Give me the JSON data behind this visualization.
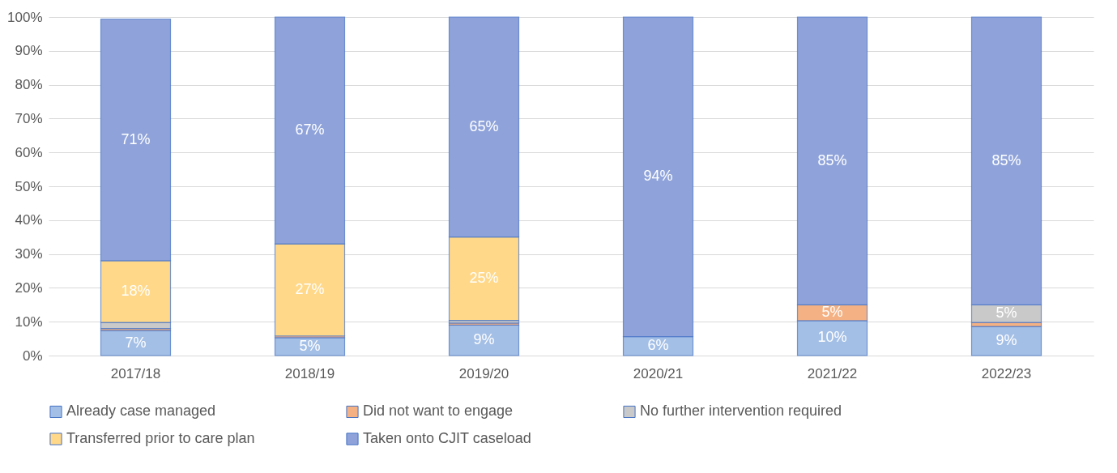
{
  "chart_data": {
    "type": "bar",
    "stacked": true,
    "categories": [
      "2017/18",
      "2018/19",
      "2019/20",
      "2020/21",
      "2021/22",
      "2022/23"
    ],
    "series": [
      {
        "name": "Already case managed",
        "color": "#a4bfe6",
        "values": [
          7.4,
          5.3,
          9.0,
          5.6,
          10.3,
          8.6
        ],
        "value_labels": [
          "7%",
          "5%",
          "9%",
          "6%",
          "10%",
          "9%"
        ]
      },
      {
        "name": "Did not want to engage",
        "color": "#f4b183",
        "values": [
          0.6,
          0.5,
          0.6,
          null,
          4.7,
          1.2
        ],
        "value_labels": [
          null,
          null,
          null,
          null,
          "5%",
          null
        ]
      },
      {
        "name": "No further intervention required",
        "color": "#c9c9c9",
        "values": [
          1.8,
          null,
          0.8,
          null,
          null,
          5.2
        ],
        "value_labels": [
          null,
          null,
          null,
          null,
          null,
          "5%"
        ]
      },
      {
        "name": "Transferred prior to care plan",
        "color": "#ffd88a",
        "values": [
          18.2,
          27.2,
          24.6,
          null,
          null,
          null
        ],
        "value_labels": [
          "18%",
          "27%",
          "25%",
          null,
          null,
          null
        ]
      },
      {
        "name": "Taken onto CJIT caseload",
        "color": "#8fa3da",
        "values": [
          71.4,
          67.0,
          65.0,
          94.4,
          85.0,
          85.0
        ],
        "value_labels": [
          "71%",
          "67%",
          "65%",
          "94%",
          "85%",
          "85%"
        ]
      }
    ],
    "ylim": [
      0,
      100
    ],
    "yticks": [
      {
        "value": 0,
        "label": "0%"
      },
      {
        "value": 10,
        "label": "10%"
      },
      {
        "value": 20,
        "label": "20%"
      },
      {
        "value": 30,
        "label": "30%"
      },
      {
        "value": 40,
        "label": "40%"
      },
      {
        "value": 50,
        "label": "50%"
      },
      {
        "value": 60,
        "label": "60%"
      },
      {
        "value": 70,
        "label": "70%"
      },
      {
        "value": 80,
        "label": "80%"
      },
      {
        "value": 90,
        "label": "90%"
      },
      {
        "value": 100,
        "label": "100%"
      }
    ],
    "grid": "y",
    "legend": "bottom"
  }
}
